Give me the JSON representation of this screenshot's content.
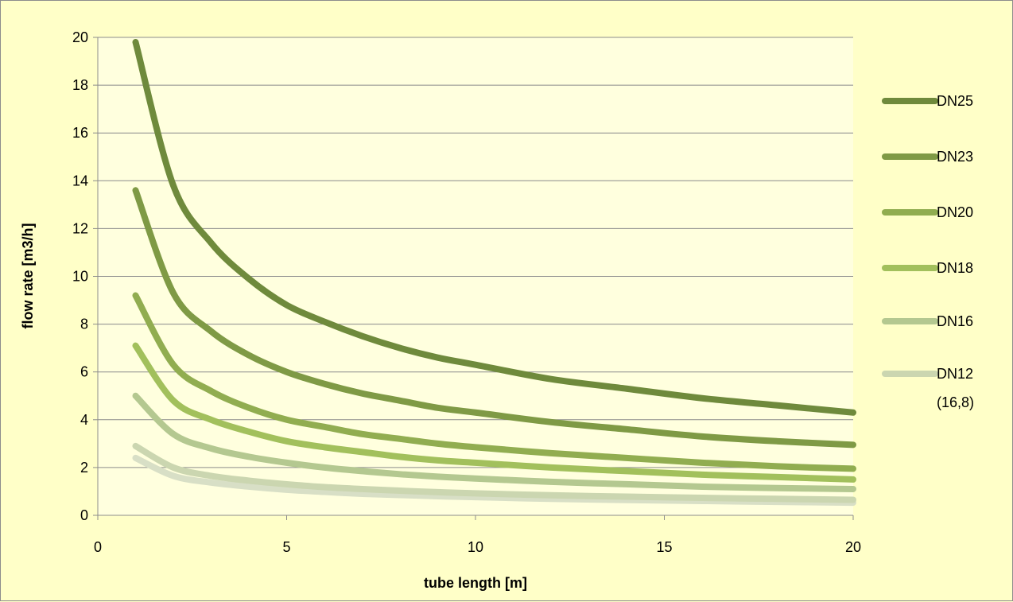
{
  "chart_data": {
    "type": "line",
    "title": "",
    "xlabel": "tube length [m]",
    "ylabel": "flow rate [m3/h]",
    "xlim": [
      0,
      20
    ],
    "ylim": [
      0,
      20
    ],
    "xticks": [
      "0",
      "5",
      "10",
      "15",
      "20"
    ],
    "yticks": [
      "0",
      "2",
      "4",
      "6",
      "8",
      "10",
      "12",
      "14",
      "16",
      "18",
      "20"
    ],
    "grid": "horizontal",
    "legend_position": "right",
    "x": [
      1,
      2,
      3,
      4,
      5,
      6,
      7,
      8,
      9,
      10,
      12,
      14,
      16,
      18,
      20
    ],
    "series": [
      {
        "name": "DN25",
        "color": "#6f8a3c",
        "values": [
          19.8,
          13.8,
          11.4,
          9.9,
          8.8,
          8.1,
          7.5,
          7.0,
          6.6,
          6.3,
          5.7,
          5.3,
          4.9,
          4.6,
          4.3
        ]
      },
      {
        "name": "DN23",
        "color": "#7f9a45",
        "values": [
          13.6,
          9.3,
          7.7,
          6.7,
          6.0,
          5.5,
          5.1,
          4.8,
          4.5,
          4.3,
          3.9,
          3.6,
          3.3,
          3.1,
          2.95
        ]
      },
      {
        "name": "DN20",
        "color": "#91ad50",
        "values": [
          9.2,
          6.3,
          5.2,
          4.5,
          4.0,
          3.7,
          3.4,
          3.2,
          3.0,
          2.85,
          2.6,
          2.4,
          2.2,
          2.05,
          1.95
        ]
      },
      {
        "name": "DN18",
        "color": "#a2c05c",
        "values": [
          7.1,
          4.8,
          4.0,
          3.5,
          3.1,
          2.85,
          2.65,
          2.45,
          2.3,
          2.2,
          2.0,
          1.85,
          1.7,
          1.6,
          1.5
        ]
      },
      {
        "name": "DN16",
        "color": "#b4c890",
        "values": [
          5.0,
          3.4,
          2.8,
          2.45,
          2.2,
          2.0,
          1.85,
          1.72,
          1.62,
          1.54,
          1.4,
          1.3,
          1.2,
          1.14,
          1.1
        ]
      },
      {
        "name": "DN12",
        "name_line2": "(16,8)",
        "color": "#cbd6b0",
        "values": [
          2.9,
          2.0,
          1.65,
          1.45,
          1.3,
          1.18,
          1.1,
          1.03,
          0.97,
          0.92,
          0.84,
          0.78,
          0.73,
          0.69,
          0.65
        ]
      },
      {
        "name": "",
        "color": "#d8dfc6",
        "values": [
          2.4,
          1.65,
          1.37,
          1.2,
          1.07,
          0.98,
          0.9,
          0.85,
          0.8,
          0.76,
          0.69,
          0.64,
          0.6,
          0.56,
          0.53
        ]
      }
    ]
  }
}
